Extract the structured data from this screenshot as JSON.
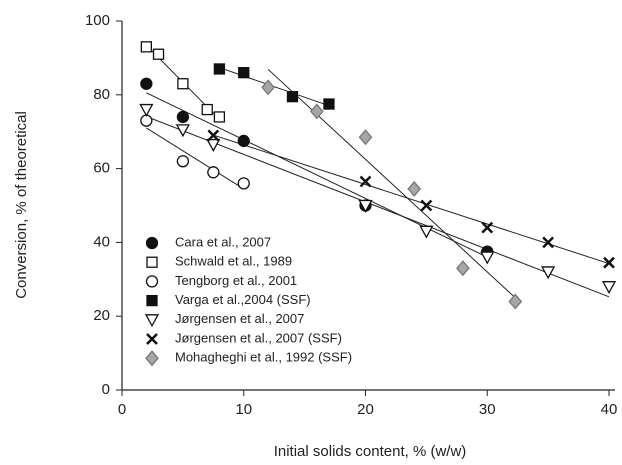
{
  "chart_data": {
    "type": "scatter",
    "xlabel": "Initial solids content, % (w/w)",
    "ylabel": "Conversion, % of theoretical",
    "xlim": [
      0,
      40
    ],
    "ylim": [
      0,
      100
    ],
    "xticks": [
      0,
      10,
      20,
      30,
      40
    ],
    "yticks": [
      0,
      20,
      40,
      60,
      80,
      100
    ],
    "trend_lines": true,
    "legend": "lower left",
    "series": [
      {
        "name": "Cara et al., 2007",
        "marker": "circle",
        "filled": true,
        "color": "#111111",
        "x": [
          2,
          5,
          10,
          20,
          30
        ],
        "values": [
          83,
          74,
          67.5,
          50,
          37.5
        ]
      },
      {
        "name": "Schwald et al., 1989",
        "marker": "square",
        "filled": false,
        "color": "#111111",
        "x": [
          2,
          3,
          5,
          7,
          8
        ],
        "values": [
          93,
          91,
          83,
          76,
          74
        ]
      },
      {
        "name": "Tengborg et al., 2001",
        "marker": "circle",
        "filled": false,
        "color": "#111111",
        "x": [
          2,
          5,
          7.5,
          10
        ],
        "values": [
          73,
          62,
          59,
          56
        ]
      },
      {
        "name": "Varga et al.,2004 (SSF)",
        "marker": "square",
        "filled": true,
        "color": "#111111",
        "x": [
          8,
          10,
          14,
          17
        ],
        "values": [
          87,
          86,
          79.5,
          77.5
        ]
      },
      {
        "name": "Jørgensen et al., 2007",
        "marker": "triangle",
        "filled": false,
        "color": "#111111",
        "x": [
          2,
          5,
          7.5,
          20,
          25,
          30,
          35,
          40
        ],
        "values": [
          76,
          70.5,
          66.5,
          50,
          43,
          36,
          32,
          28
        ]
      },
      {
        "name": "Jørgensen et al., 2007 (SSF)",
        "marker": "cross",
        "filled": true,
        "color": "#111111",
        "x": [
          7.5,
          20,
          25,
          30,
          35,
          40
        ],
        "values": [
          69,
          56.5,
          50,
          44,
          40,
          34.5
        ]
      },
      {
        "name": "Mohagheghi et al., 1992 (SSF)",
        "marker": "diamond",
        "filled": true,
        "color": "#a6a6a6",
        "x": [
          12,
          16,
          20,
          24,
          28,
          32.3
        ],
        "values": [
          82,
          75.5,
          68.5,
          54.5,
          33,
          24
        ]
      }
    ]
  }
}
